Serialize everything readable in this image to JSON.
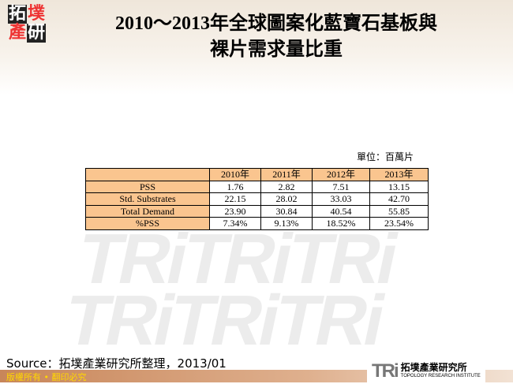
{
  "logo": {
    "chars": [
      "拓",
      "墣",
      "產",
      "研"
    ]
  },
  "title": {
    "line1": "2010～2013年全球圖案化藍寶石基板與",
    "line2": "裸片需求量比重"
  },
  "unit": "單位：百萬片",
  "table": {
    "headers": [
      "",
      "2010年",
      "2011年",
      "2012年",
      "2013年"
    ],
    "rows": [
      {
        "label": "PSS",
        "values": [
          "1.76",
          "2.82",
          "7.51",
          "13.15"
        ]
      },
      {
        "label": "Std. Substrates",
        "values": [
          "22.15",
          "28.02",
          "33.03",
          "42.70"
        ]
      },
      {
        "label": "Total Demand",
        "values": [
          "23.90",
          "30.84",
          "40.54",
          "55.85"
        ]
      },
      {
        "label": "%PSS",
        "values": [
          "7.34%",
          "9.13%",
          "18.52%",
          "23.54%"
        ]
      }
    ]
  },
  "source": "Source：拓墣產業研究所整理，2013/01",
  "footer": {
    "copyright": "版權所有 • 翻印必究",
    "brand": "TRi",
    "brand_cn": "拓墣產業研究所",
    "brand_en": "TOPOLOGY RESEARCH INSTITUTE"
  },
  "colors": {
    "header_fill": "#fac58f",
    "footer_text": "#ffd700"
  }
}
